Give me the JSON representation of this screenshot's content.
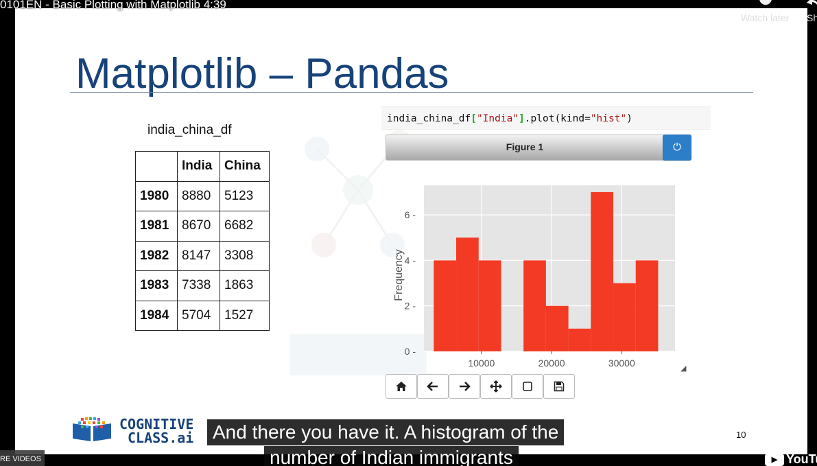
{
  "video": {
    "title": "0101EN - Basic Plotting with Matplotlib 4:39",
    "watch_later": "Watch later",
    "share": "Sh",
    "more_videos": "RE VIDEOS",
    "youtube": "YouTu"
  },
  "slide": {
    "title": "Matplotlib – Pandas",
    "page_number": "10",
    "brand_line1": "COGNITIVE",
    "brand_line2": "CLASS.ai"
  },
  "dataframe": {
    "name": "india_china_df",
    "columns": [
      "",
      "India",
      "China"
    ],
    "rows": [
      {
        "year": "1980",
        "india": "8880",
        "china": "5123"
      },
      {
        "year": "1981",
        "india": "8670",
        "china": "6682"
      },
      {
        "year": "1982",
        "india": "8147",
        "china": "3308"
      },
      {
        "year": "1983",
        "india": "7338",
        "china": "1863"
      },
      {
        "year": "1984",
        "india": "5704",
        "china": "1527"
      }
    ]
  },
  "code": {
    "prefix": "india_china_df",
    "open_bracket": "[",
    "column": "\"India\"",
    "close_bracket": "]",
    "call": ".plot(kind=",
    "kind": "\"hist\"",
    "end": ")"
  },
  "figure": {
    "title": "Figure 1",
    "power_icon": "power-icon",
    "toolbar": [
      "home-icon",
      "back-arrow-icon",
      "forward-arrow-icon",
      "pan-icon",
      "zoom-rect-icon",
      "save-icon"
    ]
  },
  "captions": {
    "line1": "And there you have it. A histogram of the",
    "line2": "number of Indian immigrants"
  },
  "chart_data": {
    "type": "bar",
    "title": "",
    "xlabel": "",
    "ylabel": "Frequency",
    "bin_edges": [
      3200,
      6400,
      9600,
      12800,
      16000,
      19200,
      22400,
      25600,
      28800,
      32000,
      35200
    ],
    "values": [
      4,
      5,
      4,
      0,
      4,
      2,
      1,
      7,
      3,
      4
    ],
    "xlim": [
      1800,
      37600
    ],
    "ylim": [
      0,
      7.3
    ],
    "x_ticks": [
      10000,
      20000,
      30000
    ],
    "x_tick_labels": [
      "10000",
      "20000",
      "30000"
    ],
    "y_ticks": [
      0,
      2,
      4,
      6
    ],
    "y_tick_labels": [
      "0",
      "2",
      "4",
      "6"
    ],
    "bar_color": "#f33a24",
    "background": "#e5e5e5",
    "grid": true
  }
}
